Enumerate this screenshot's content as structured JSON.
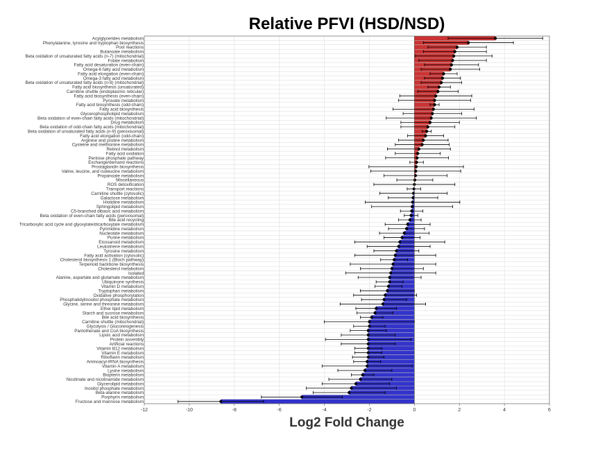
{
  "chart_data": {
    "type": "bar",
    "orientation": "horizontal",
    "title": "Relative PFVI (HSD/NSD)",
    "xlabel": "Log2 Fold Change",
    "ylabel": "",
    "xlim": [
      -12,
      6
    ],
    "xticks": [
      "-12",
      "-10",
      "-8",
      "-6",
      "-4",
      "-2",
      "0",
      "2",
      "4",
      "6"
    ],
    "grid": true,
    "colors": {
      "positive": "#cc3333",
      "negative": "#3333cc",
      "error_bar": "#000000",
      "grid": "#d9d9d9"
    },
    "categories": [
      "Acylglycerides metabolism",
      "Phenylalanine, tyrosine and tryptophan biosynthesis",
      "Pool reactions",
      "Butanoate metabolism",
      "Beta oxidation of unsaturated fatty acids (n-7) (mitochondrial)",
      "Folate metabolism",
      "Fatty acid desaturation (even-chain)",
      "Omega-6 fatty acid metabolism",
      "Fatty acid elongation (even-chain)",
      "Omega-3 fatty acid metabolism",
      "Beta oxidation of unsaturated fatty acids (n-9) (mitochondrial)",
      "Fatty acid biosynthesis (unsaturated)",
      "Carnitine shuttle (endoplasmic reticular)",
      "Fatty acid biosynthesis (even-chain)",
      "Pyruvate metabolism",
      "Fatty acid biosynthesis (odd-chain)",
      "Fatty acid biosynthesis",
      "Glycerophospholipid metabolism",
      "Beta oxidation of even-chain fatty acids (mitochondrial)",
      "Drug metabolism",
      "Beta oxidation of odd-chain fatty acids (mitochondrial)",
      "Beta oxidation of unsaturated fatty acids (n-9) (peroxisomal)",
      "Fatty acid elongation (odd-chain)",
      "Arginine and proline metabolism",
      "Cysteine and methionine metabolism",
      "Retinol metabolism",
      "Fatty acid oxidation",
      "Pentose phosphate pathway",
      "Exchange/demand reactions",
      "Prostaglandin biosynthesis",
      "Valine, leucine, and isoleucine metabolism",
      "Propanoate metabolism",
      "Miscellaneous",
      "ROS detoxification",
      "Transport reactions",
      "Carnitine shuttle (cytosolic)",
      "Galactose metabolism",
      "Histidine metabolism",
      "Sphingolipid metabolism",
      "C5-branched dibasic acid metabolism",
      "Beta oxidation of even-chain fatty acids (peroxisomal)",
      "Bile acid recycling",
      "Tricarboxylic acid cycle and glyoxylate/dicarboxylate metabolism",
      "Pyrimidine metabolism",
      "Nucleotide metabolism",
      "Purine metabolism",
      "Eicosanoid metabolism",
      "Leukotriene metabolism",
      "Tyrosine metabolism",
      "Fatty acid activation (cytosolic)",
      "Cholesterol biosynthesis 1 (Bloch pathway)",
      "Terpenoid backbone biosynthesis",
      "Cholesterol metabolism",
      "Isolated",
      "Alanine, aspartate and glutamate metabolism",
      "Ubiquinone synthesis",
      "Vitamin D metabolism",
      "Tryptophan metabolism",
      "Oxidative phosphorylation",
      "Phosphatidylinositol phosphate metabolism",
      "Glycine, serine and threonine metabolism",
      "Ether lipid metabolism",
      "Starch and sucrose metabolism",
      "Bile acid biosynthesis",
      "Carnitine shuttle (mitochondrial)",
      "Glycolysis / Gluconeogenesis",
      "Pantothenate and CoA biosynthesis",
      "Lipoic acid metabolism",
      "Protein assembly",
      "Artificial reactions",
      "Vitamin B12 metabolism",
      "Vitamin E metabolism",
      "Riboflavin metabolism",
      "Aminoacyl-tRNA biosynthesis",
      "Vitamin A metabolism",
      "Lysine metabolism",
      "Biopterin metabolism",
      "Nicotinate and nicotinamide metabolism",
      "Glycerolipid metabolism",
      "Inositol phosphate metabolism",
      "Beta-alanine metabolism",
      "Porphyrin metabolism",
      "Fructose and mannose metabolism"
    ],
    "values": [
      3.6,
      2.4,
      1.9,
      1.8,
      1.75,
      1.7,
      1.65,
      1.6,
      1.3,
      1.25,
      1.2,
      1.1,
      1.05,
      0.95,
      0.9,
      0.9,
      0.85,
      0.8,
      0.75,
      0.7,
      0.6,
      0.55,
      0.5,
      0.4,
      0.35,
      0.2,
      0.15,
      0.12,
      0.1,
      0.08,
      0.06,
      0.05,
      0.02,
      0.0,
      -0.02,
      -0.04,
      -0.06,
      -0.08,
      -0.1,
      -0.12,
      -0.15,
      -0.2,
      -0.3,
      -0.35,
      -0.45,
      -0.55,
      -0.65,
      -0.7,
      -0.8,
      -0.85,
      -0.9,
      -0.95,
      -1.0,
      -1.05,
      -1.1,
      -1.1,
      -1.15,
      -1.2,
      -1.3,
      -1.35,
      -1.4,
      -1.7,
      -1.75,
      -1.9,
      -2.0,
      -2.0,
      -2.05,
      -2.05,
      -2.05,
      -2.05,
      -2.05,
      -2.05,
      -2.05,
      -2.1,
      -2.1,
      -2.2,
      -2.3,
      -2.4,
      -2.6,
      -2.8,
      -2.9,
      -5.0,
      -8.6
    ],
    "errors": [
      2.1,
      2.0,
      1.3,
      1.4,
      1.7,
      1.5,
      1.2,
      1.3,
      0.6,
      0.8,
      0.9,
      0.5,
      0.9,
      1.6,
      1.6,
      0.2,
      1.8,
      1.3,
      2.0,
      1.3,
      1.2,
      0.2,
      0.8,
      1.1,
      1.2,
      1.4,
      1.0,
      1.4,
      0.3,
      2.1,
      2.0,
      1.4,
      0.8,
      1.8,
      0.3,
      1.5,
      1.1,
      2.1,
      1.8,
      0.5,
      0.3,
      0.5,
      1.0,
      0.8,
      1.1,
      0.8,
      2.0,
      1.4,
      1.0,
      1.8,
      0.6,
      1.9,
      1.4,
      2.0,
      1.4,
      0.6,
      0.6,
      1.2,
      1.4,
      1.0,
      1.9,
      0.9,
      0.8,
      0.5,
      2.0,
      0.7,
      0.8,
      1.2,
      1.9,
      1.2,
      0.6,
      0.6,
      0.7,
      0.6,
      2.0,
      1.2,
      0.5,
      1.4,
      1.5,
      2.0,
      1.6,
      1.8,
      1.9
    ]
  }
}
